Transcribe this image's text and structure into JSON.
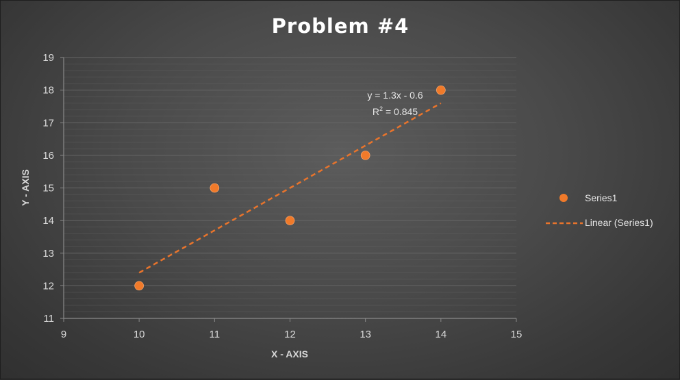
{
  "chart_data": {
    "type": "scatter",
    "title": "Problem #4",
    "xlabel": "X - AXIS",
    "ylabel": "Y - AXIS",
    "xlim": [
      9,
      15
    ],
    "ylim": [
      11,
      19
    ],
    "x_ticks": [
      9,
      10,
      11,
      12,
      13,
      14,
      15
    ],
    "y_ticks": [
      11,
      12,
      13,
      14,
      15,
      16,
      17,
      18,
      19
    ],
    "grid": true,
    "legend_position": "right",
    "series": [
      {
        "name": "Series1",
        "x": [
          10,
          11,
          12,
          13,
          14
        ],
        "y": [
          12,
          15,
          14,
          16,
          18
        ],
        "color": "#f07a2a"
      }
    ],
    "trendline": {
      "name": "Linear (Series1)",
      "type": "linear",
      "slope": 1.3,
      "intercept": -0.6,
      "x_range": [
        10,
        14
      ],
      "equation_label": "y = 1.3x - 0.6",
      "r2_label_prefix": "R",
      "r2_label_suffix": " = 0.845",
      "color": "#e8742c",
      "style": "dashed"
    }
  },
  "colors": {
    "grid": "#6a6a6a",
    "axis": "#8a8a8a",
    "marker": "#f07a2a"
  }
}
